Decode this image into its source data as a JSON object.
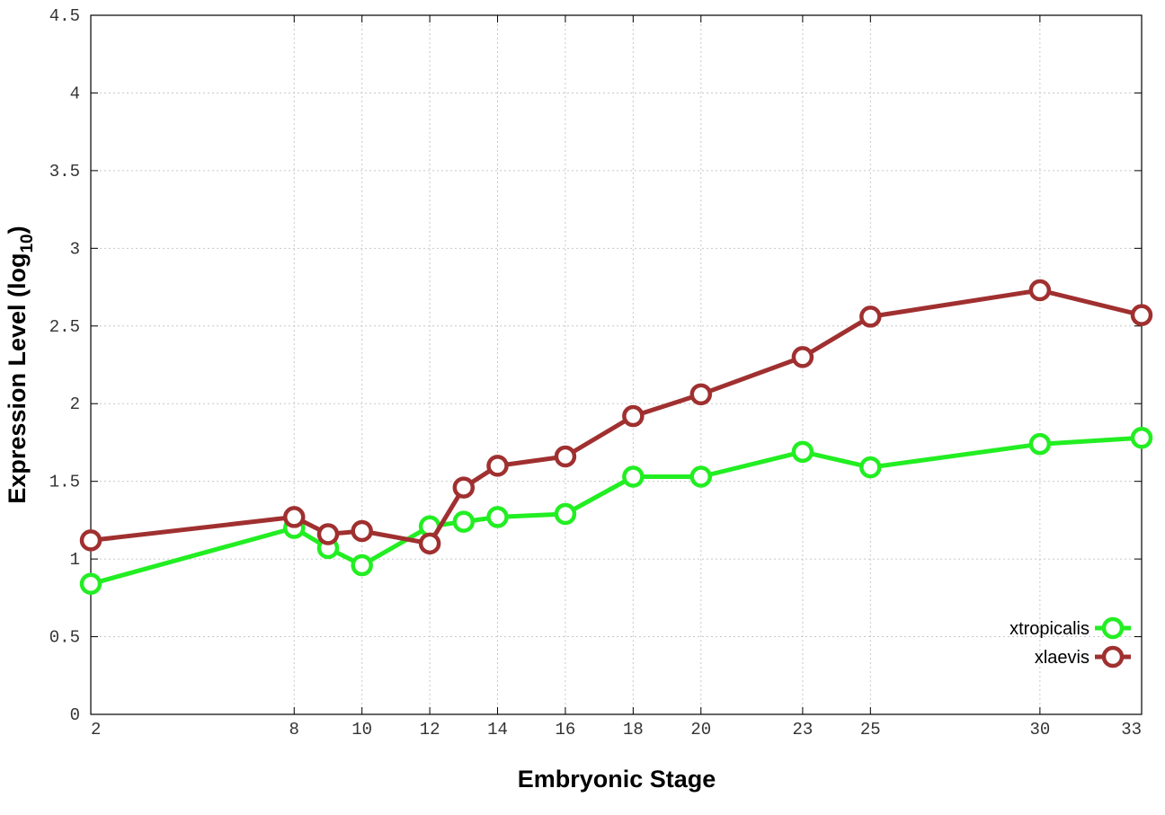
{
  "chart_data": {
    "type": "line",
    "xlabel": "Embryonic Stage",
    "ylabel": {
      "prefix": "Expression Level (log",
      "subscript": "10",
      "suffix": ")"
    },
    "xlim": [
      2,
      33
    ],
    "ylim": [
      0,
      4.5
    ],
    "xticks": [
      2,
      8,
      10,
      12,
      14,
      16,
      18,
      20,
      23,
      25,
      30,
      33
    ],
    "yticks": [
      {
        "value": 0,
        "label": "0"
      },
      {
        "value": 0.5,
        "label": "0.5"
      },
      {
        "value": 1,
        "label": "1"
      },
      {
        "value": 1.5,
        "label": "1.5"
      },
      {
        "value": 2,
        "label": "2"
      },
      {
        "value": 2.5,
        "label": "2.5"
      },
      {
        "value": 3,
        "label": "3"
      },
      {
        "value": 3.5,
        "label": "3.5"
      },
      {
        "value": 4,
        "label": "4"
      },
      {
        "value": 4.5,
        "label": "4.5"
      }
    ],
    "grid": true,
    "legend_position": "bottom-right",
    "series": [
      {
        "name": "xtropicalis",
        "color": "#22ee22",
        "points": [
          {
            "x": 2,
            "y": 0.84
          },
          {
            "x": 8,
            "y": 1.2
          },
          {
            "x": 9,
            "y": 1.07
          },
          {
            "x": 10,
            "y": 0.96
          },
          {
            "x": 12,
            "y": 1.21
          },
          {
            "x": 13,
            "y": 1.24
          },
          {
            "x": 14,
            "y": 1.27
          },
          {
            "x": 16,
            "y": 1.29
          },
          {
            "x": 18,
            "y": 1.53
          },
          {
            "x": 20,
            "y": 1.53
          },
          {
            "x": 23,
            "y": 1.69
          },
          {
            "x": 25,
            "y": 1.59
          },
          {
            "x": 30,
            "y": 1.74
          },
          {
            "x": 33,
            "y": 1.78
          }
        ]
      },
      {
        "name": "xlaevis",
        "color": "#a03030",
        "points": [
          {
            "x": 2,
            "y": 1.12
          },
          {
            "x": 8,
            "y": 1.27
          },
          {
            "x": 9,
            "y": 1.16
          },
          {
            "x": 10,
            "y": 1.18
          },
          {
            "x": 12,
            "y": 1.1
          },
          {
            "x": 13,
            "y": 1.46
          },
          {
            "x": 14,
            "y": 1.6
          },
          {
            "x": 16,
            "y": 1.66
          },
          {
            "x": 18,
            "y": 1.92
          },
          {
            "x": 20,
            "y": 2.06
          },
          {
            "x": 23,
            "y": 2.3
          },
          {
            "x": 25,
            "y": 2.56
          },
          {
            "x": 30,
            "y": 2.73
          },
          {
            "x": 33,
            "y": 2.57
          }
        ]
      }
    ]
  }
}
